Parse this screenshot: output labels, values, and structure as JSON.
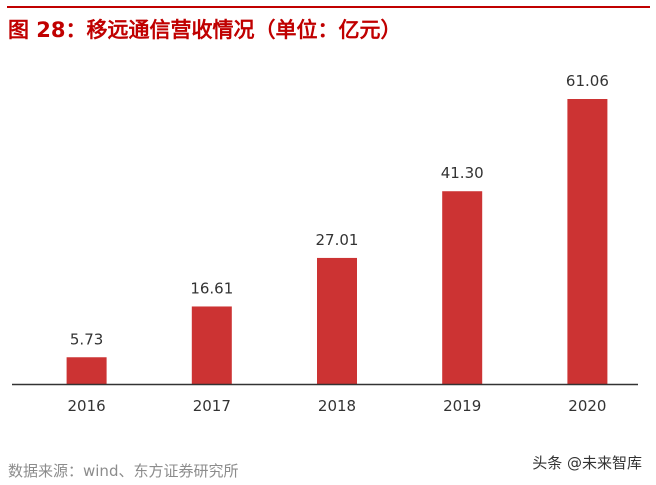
{
  "title": "图 28：移远通信营收情况（单位：亿元）",
  "source": "数据来源：wind、东方证券研究所",
  "watermark": "头条 @未来智库",
  "colors": {
    "title": "#c00000",
    "bar": "#cc3333",
    "axis": "#333333"
  },
  "chart_data": {
    "type": "bar",
    "title": "图 28：移远通信营收情况（单位：亿元）",
    "categories": [
      "2016",
      "2017",
      "2018",
      "2019",
      "2020"
    ],
    "values": [
      5.73,
      16.61,
      27.01,
      41.3,
      61.06
    ],
    "value_labels": [
      "5.73",
      "16.61",
      "27.01",
      "41.30",
      "61.06"
    ],
    "xlabel": "",
    "ylabel": "",
    "ylim": [
      0,
      61.06
    ],
    "grid": false,
    "legend": "none"
  }
}
